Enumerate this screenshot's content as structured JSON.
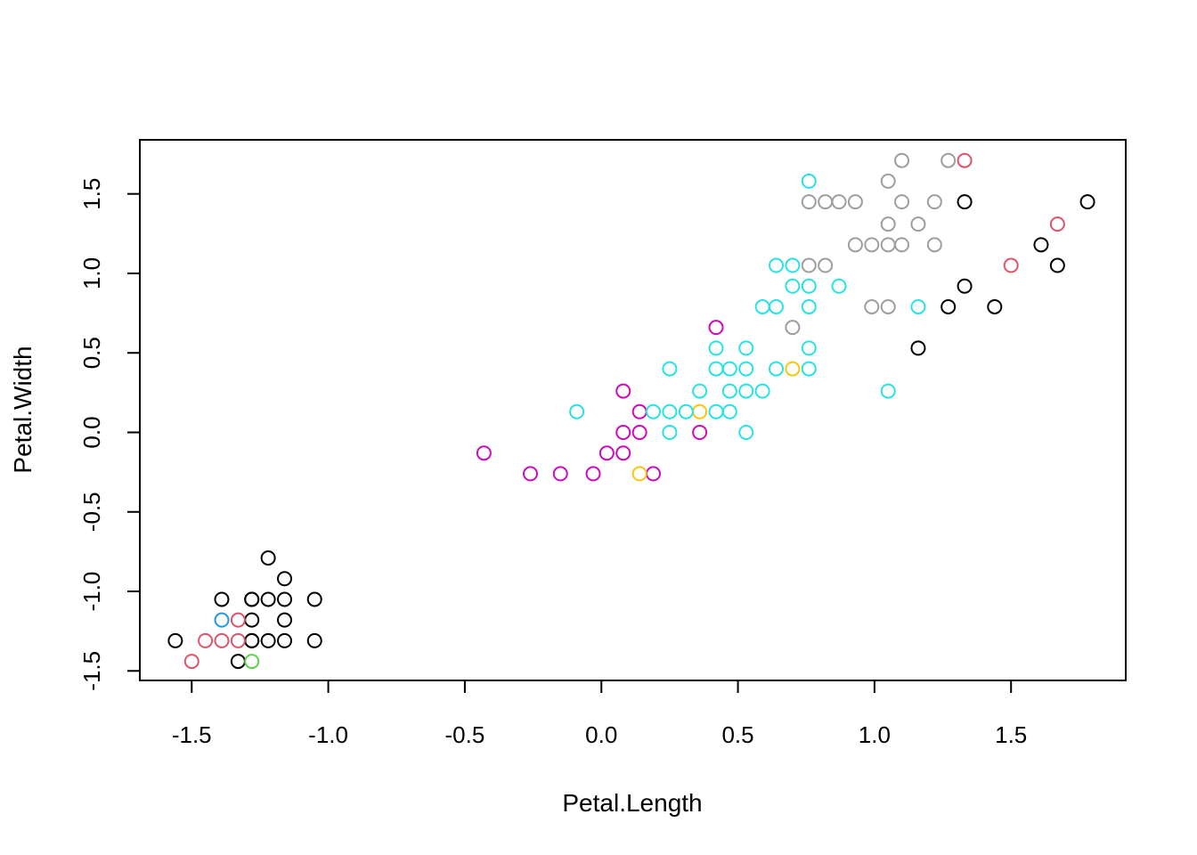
{
  "chart_data": {
    "type": "scatter",
    "title": "",
    "xlabel": "Petal.Length",
    "ylabel": "Petal.Width",
    "xlim": [
      -1.69,
      1.92
    ],
    "ylim": [
      -1.56,
      1.84
    ],
    "x_ticks": [
      -1.5,
      -1.0,
      -0.5,
      0.0,
      0.5,
      1.0,
      1.5
    ],
    "x_tick_labels": [
      "-1.5",
      "-1.0",
      "-0.5",
      "0.0",
      "0.5",
      "1.0",
      "1.5"
    ],
    "y_ticks": [
      -1.5,
      -1.0,
      -0.5,
      0.0,
      0.5,
      1.0,
      1.5
    ],
    "y_tick_labels": [
      "-1.5",
      "-1.0",
      "-0.5",
      "0.0",
      "0.5",
      "1.0",
      "1.5"
    ],
    "grid": false,
    "legend": "none",
    "marker": "open-circle",
    "series": [
      {
        "color": "#000000",
        "points": [
          [
            -1.56,
            -1.31
          ],
          [
            -1.39,
            -1.05
          ],
          [
            -1.28,
            -1.05
          ],
          [
            -1.28,
            -1.05
          ],
          [
            -1.22,
            -1.05
          ],
          [
            -1.16,
            -1.05
          ],
          [
            -1.05,
            -1.05
          ],
          [
            -1.22,
            -0.79
          ],
          [
            -1.16,
            -0.92
          ],
          [
            -1.28,
            -1.18
          ],
          [
            -1.16,
            -1.18
          ],
          [
            -1.28,
            -1.31
          ],
          [
            -1.28,
            -1.31
          ],
          [
            -1.22,
            -1.31
          ],
          [
            -1.16,
            -1.31
          ],
          [
            -1.05,
            -1.31
          ],
          [
            -1.33,
            -1.44
          ],
          [
            1.16,
            0.53
          ],
          [
            1.27,
            0.79
          ],
          [
            1.44,
            0.79
          ],
          [
            1.33,
            0.92
          ],
          [
            1.33,
            1.45
          ],
          [
            1.61,
            1.18
          ],
          [
            1.67,
            1.05
          ],
          [
            1.78,
            1.45
          ]
        ]
      },
      {
        "color": "#df536b",
        "points": [
          [
            -1.5,
            -1.44
          ],
          [
            -1.45,
            -1.31
          ],
          [
            -1.39,
            -1.31
          ],
          [
            -1.33,
            -1.31
          ],
          [
            -1.33,
            -1.18
          ],
          [
            1.5,
            1.05
          ],
          [
            1.67,
            1.31
          ],
          [
            1.33,
            1.71
          ]
        ]
      },
      {
        "color": "#2297e6",
        "points": [
          [
            -1.39,
            -1.18
          ]
        ]
      },
      {
        "color": "#61d04f",
        "points": [
          [
            -1.28,
            -1.44
          ]
        ]
      },
      {
        "color": "#cd0bbc",
        "points": [
          [
            -0.43,
            -0.13
          ],
          [
            -0.26,
            -0.26
          ],
          [
            -0.15,
            -0.26
          ],
          [
            -0.03,
            -0.26
          ],
          [
            0.02,
            -0.13
          ],
          [
            0.08,
            -0.13
          ],
          [
            0.08,
            0.0
          ],
          [
            0.14,
            0.0
          ],
          [
            0.14,
            0.13
          ],
          [
            0.08,
            0.26
          ],
          [
            0.19,
            -0.26
          ],
          [
            0.36,
            0.0
          ],
          [
            0.42,
            0.66
          ]
        ]
      },
      {
        "color": "#f5c710",
        "points": [
          [
            0.14,
            -0.26
          ],
          [
            0.36,
            0.13
          ],
          [
            0.7,
            0.4
          ]
        ]
      },
      {
        "color": "#28e2e5",
        "points": [
          [
            -0.09,
            0.13
          ],
          [
            0.19,
            0.13
          ],
          [
            0.25,
            0.0
          ],
          [
            0.25,
            0.13
          ],
          [
            0.25,
            0.4
          ],
          [
            0.31,
            0.13
          ],
          [
            0.36,
            0.26
          ],
          [
            0.42,
            0.13
          ],
          [
            0.42,
            0.4
          ],
          [
            0.42,
            0.53
          ],
          [
            0.47,
            0.13
          ],
          [
            0.47,
            0.26
          ],
          [
            0.47,
            0.4
          ],
          [
            0.53,
            0.0
          ],
          [
            0.53,
            0.26
          ],
          [
            0.53,
            0.4
          ],
          [
            0.53,
            0.53
          ],
          [
            0.59,
            0.26
          ],
          [
            0.59,
            0.79
          ],
          [
            0.64,
            0.4
          ],
          [
            0.64,
            0.79
          ],
          [
            0.64,
            1.05
          ],
          [
            0.7,
            0.92
          ],
          [
            0.7,
            1.05
          ],
          [
            0.76,
            0.4
          ],
          [
            0.76,
            0.53
          ],
          [
            0.76,
            0.79
          ],
          [
            0.76,
            0.92
          ],
          [
            0.76,
            1.58
          ],
          [
            0.87,
            0.92
          ],
          [
            1.05,
            0.26
          ],
          [
            1.16,
            0.79
          ]
        ]
      },
      {
        "color": "#9e9e9e",
        "points": [
          [
            0.7,
            0.66
          ],
          [
            0.76,
            1.05
          ],
          [
            0.82,
            1.05
          ],
          [
            0.76,
            1.45
          ],
          [
            0.82,
            1.45
          ],
          [
            0.87,
            1.45
          ],
          [
            0.93,
            1.45
          ],
          [
            0.93,
            1.18
          ],
          [
            0.99,
            1.18
          ],
          [
            0.99,
            0.79
          ],
          [
            1.05,
            0.79
          ],
          [
            1.05,
            1.18
          ],
          [
            1.05,
            1.31
          ],
          [
            1.05,
            1.58
          ],
          [
            1.1,
            1.18
          ],
          [
            1.1,
            1.45
          ],
          [
            1.1,
            1.71
          ],
          [
            1.16,
            1.31
          ],
          [
            1.22,
            1.18
          ],
          [
            1.22,
            1.45
          ],
          [
            1.27,
            1.71
          ]
        ]
      }
    ]
  }
}
